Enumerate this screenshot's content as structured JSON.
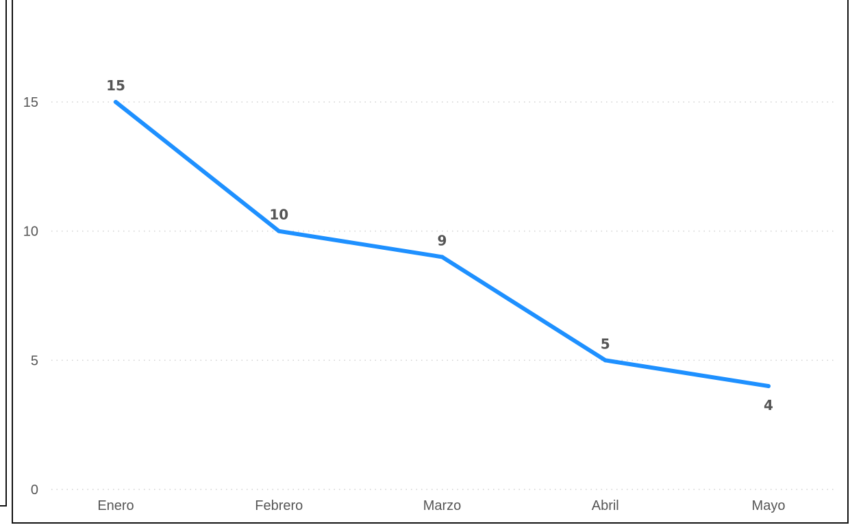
{
  "colors": {
    "line": "#1E90FF",
    "tick_text": "#555555",
    "data_label": "#555555",
    "gridline": "#d0d0d0",
    "frame": "#111111"
  },
  "chart_data": {
    "type": "line",
    "categories": [
      "Enero",
      "Febrero",
      "Marzo",
      "Abril",
      "Mayo"
    ],
    "values": [
      15,
      10,
      9,
      5,
      4
    ],
    "data_labels": [
      "15",
      "10",
      "9",
      "5",
      "4"
    ],
    "title": "",
    "xlabel": "",
    "ylabel": "",
    "ylim": [
      0,
      18
    ],
    "yticks": [
      0,
      5,
      10,
      15
    ],
    "ytick_labels": [
      "0",
      "5",
      "10",
      "15"
    ],
    "grid": "horizontal-dotted",
    "legend": "none"
  }
}
